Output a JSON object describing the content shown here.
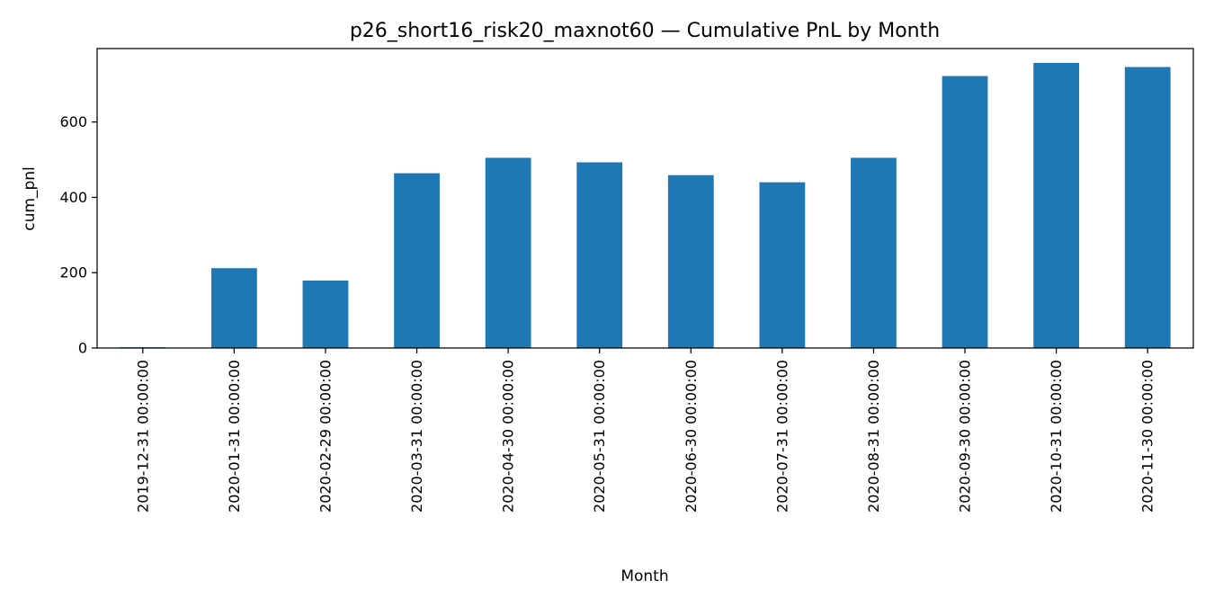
{
  "chart_data": {
    "type": "bar",
    "title": "p26_short16_risk20_maxnot60 — Cumulative PnL by Month",
    "xlabel": "Month",
    "ylabel": "cum_pnl",
    "categories": [
      "2019-12-31 00:00:00",
      "2020-01-31 00:00:00",
      "2020-02-29 00:00:00",
      "2020-03-31 00:00:00",
      "2020-04-30 00:00:00",
      "2020-05-31 00:00:00",
      "2020-06-30 00:00:00",
      "2020-07-31 00:00:00",
      "2020-08-31 00:00:00",
      "2020-09-30 00:00:00",
      "2020-10-31 00:00:00",
      "2020-11-30 00:00:00"
    ],
    "values": [
      2,
      212,
      179,
      464,
      505,
      493,
      459,
      440,
      505,
      722,
      757,
      746
    ],
    "ylim": [
      0,
      795
    ],
    "yticks": [
      0,
      200,
      400,
      600
    ],
    "color": "#1f77b4",
    "grid": false,
    "legend": "none"
  }
}
